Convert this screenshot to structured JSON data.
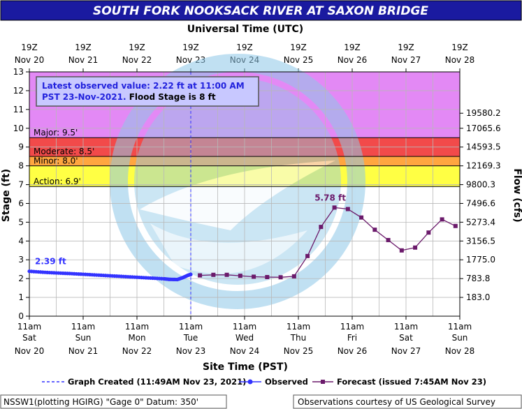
{
  "title": "SOUTH FORK NOOKSACK RIVER AT SAXON BRIDGE",
  "top_axis_title": "Universal Time (UTC)",
  "bottom_axis_title": "Site Time (PST)",
  "info_box": {
    "line1": "Latest observed value: 2.22 ft at 11:00 AM",
    "line2a": "PST 23-Nov-2021.",
    "line2b": " Flood Stage is 8 ft"
  },
  "footer": {
    "left": "NSSW1(plotting HGIRG) \"Gage 0\" Datum: 350'",
    "right": "Observations courtesy of US Geological Survey"
  },
  "legend": {
    "created": "Graph Created (11:49AM Nov 23, 2021)",
    "observed": "Observed",
    "forecast": "Forecast (issued 7:45AM Nov 23)"
  },
  "colors": {
    "title_bg": "#1a1aa0",
    "major": "#e389f5",
    "moderate": "#f24a4a",
    "minor": "#ffa640",
    "action": "#ffff44",
    "observed": "#3333ff",
    "forecast": "#6b1a6b",
    "watermark": "#8ec8e8"
  },
  "chart_data": {
    "type": "line",
    "ylabel": "Stage (ft)",
    "y2label": "Flow (cfs)",
    "ylim": [
      0,
      13
    ],
    "y_ticks": [
      "0",
      "1",
      "2",
      "3",
      "4",
      "5",
      "6",
      "7",
      "8",
      "9",
      "10",
      "11",
      "12",
      "13"
    ],
    "xlim_days": [
      0,
      8
    ],
    "grid": true,
    "bottom_ticks": [
      {
        "time": "11am",
        "day": "Sat",
        "date": "Nov 20"
      },
      {
        "time": "11am",
        "day": "Sun",
        "date": "Nov 21"
      },
      {
        "time": "11am",
        "day": "Mon",
        "date": "Nov 22"
      },
      {
        "time": "11am",
        "day": "Tue",
        "date": "Nov 23"
      },
      {
        "time": "11am",
        "day": "Wed",
        "date": "Nov 24"
      },
      {
        "time": "11am",
        "day": "Thu",
        "date": "Nov 25"
      },
      {
        "time": "11am",
        "day": "Fri",
        "date": "Nov 26"
      },
      {
        "time": "11am",
        "day": "Sat",
        "date": "Nov 27"
      },
      {
        "time": "11am",
        "day": "Sun",
        "date": "Nov 28"
      }
    ],
    "top_ticks": [
      {
        "time": "19Z",
        "date": "Nov 20"
      },
      {
        "time": "19Z",
        "date": "Nov 21"
      },
      {
        "time": "19Z",
        "date": "Nov 22"
      },
      {
        "time": "19Z",
        "date": "Nov 23"
      },
      {
        "time": "19Z",
        "date": "Nov 24"
      },
      {
        "time": "19Z",
        "date": "Nov 25"
      },
      {
        "time": "19Z",
        "date": "Nov 26"
      },
      {
        "time": "19Z",
        "date": "Nov 27"
      },
      {
        "time": "19Z",
        "date": "Nov 28"
      }
    ],
    "flow_ticks": [
      {
        "stage": 10.8,
        "label": "19580.2"
      },
      {
        "stage": 10.0,
        "label": "17065.6"
      },
      {
        "stage": 9.0,
        "label": "14593.5"
      },
      {
        "stage": 8.0,
        "label": "12169.3"
      },
      {
        "stage": 7.0,
        "label": "9800.3"
      },
      {
        "stage": 6.0,
        "label": "7496.6"
      },
      {
        "stage": 5.0,
        "label": "5273.4"
      },
      {
        "stage": 4.0,
        "label": "3156.5"
      },
      {
        "stage": 3.0,
        "label": "1775.0"
      },
      {
        "stage": 2.0,
        "label": "783.8"
      },
      {
        "stage": 1.0,
        "label": "183.0"
      }
    ],
    "flood_categories": [
      {
        "name": "Major",
        "label": "Major: 9.5'",
        "from": 9.5,
        "to": 13
      },
      {
        "name": "Moderate",
        "label": "Moderate: 8.5'",
        "from": 8.5,
        "to": 9.5
      },
      {
        "name": "Minor",
        "label": "Minor: 8.0'",
        "from": 8.0,
        "to": 8.5
      },
      {
        "name": "Action",
        "label": "Action: 6.9'",
        "from": 6.9,
        "to": 8.0
      }
    ],
    "graph_created_day": 3.0,
    "series": [
      {
        "name": "Observed",
        "points": [
          [
            0,
            2.39
          ],
          [
            0.25,
            2.34
          ],
          [
            0.5,
            2.3
          ],
          [
            0.75,
            2.27
          ],
          [
            1,
            2.23
          ],
          [
            1.25,
            2.19
          ],
          [
            1.5,
            2.15
          ],
          [
            1.75,
            2.11
          ],
          [
            2,
            2.07
          ],
          [
            2.25,
            2.03
          ],
          [
            2.5,
            1.99
          ],
          [
            2.6,
            1.96
          ],
          [
            2.75,
            1.95
          ],
          [
            2.85,
            2.05
          ],
          [
            2.95,
            2.18
          ],
          [
            3.0,
            2.22
          ]
        ]
      },
      {
        "name": "Forecast",
        "points": [
          [
            3.17,
            2.17
          ],
          [
            3.42,
            2.2
          ],
          [
            3.67,
            2.2
          ],
          [
            3.92,
            2.15
          ],
          [
            4.17,
            2.1
          ],
          [
            4.42,
            2.08
          ],
          [
            4.67,
            2.07
          ],
          [
            4.92,
            2.12
          ],
          [
            5.17,
            3.2
          ],
          [
            5.42,
            4.75
          ],
          [
            5.67,
            5.78
          ],
          [
            5.92,
            5.7
          ],
          [
            6.17,
            5.25
          ],
          [
            6.42,
            4.6
          ],
          [
            6.67,
            4.05
          ],
          [
            6.92,
            3.5
          ],
          [
            7.17,
            3.65
          ],
          [
            7.42,
            4.45
          ],
          [
            7.67,
            5.15
          ],
          [
            7.92,
            4.8
          ]
        ]
      }
    ],
    "annotations": [
      {
        "text": "2.39 ft",
        "x": 0,
        "y": 2.39
      },
      {
        "text": "5.78 ft",
        "x": 5.67,
        "y": 5.78
      }
    ]
  }
}
